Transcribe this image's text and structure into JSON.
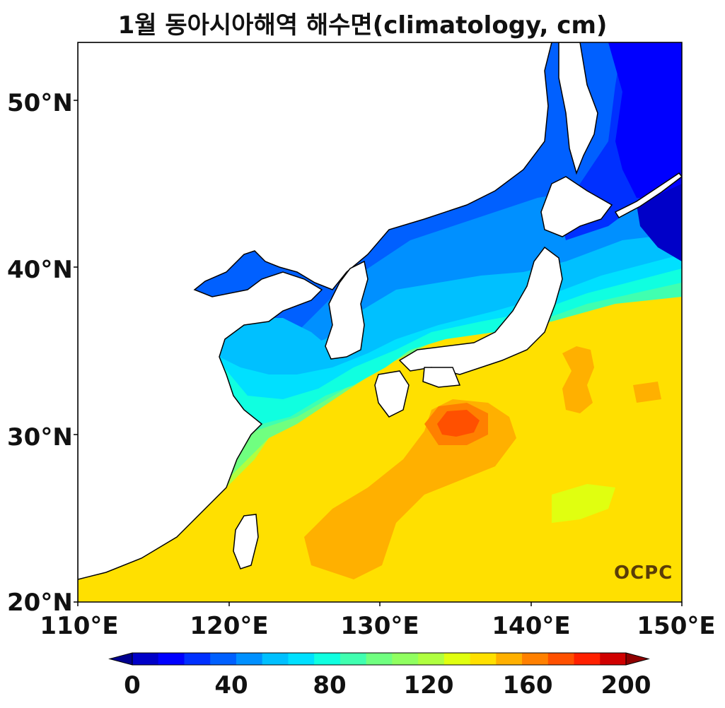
{
  "title": "1월 동아시아해역 해수면(climatology, cm)",
  "y_axis": {
    "ticks": [
      "50°N",
      "40°N",
      "30°N",
      "20°N"
    ],
    "values": [
      50,
      40,
      30,
      20
    ]
  },
  "x_axis": {
    "ticks": [
      "110°E",
      "120°E",
      "130°E",
      "140°E",
      "150°E"
    ],
    "values": [
      110,
      120,
      130,
      140,
      150
    ]
  },
  "map_extent": {
    "lon": [
      110,
      150
    ],
    "lat": [
      20,
      53.5
    ]
  },
  "colorbar": {
    "ticks": [
      "0",
      "40",
      "80",
      "120",
      "160",
      "200"
    ],
    "tick_values": [
      0,
      40,
      80,
      120,
      160,
      200
    ],
    "range": [
      0,
      200
    ],
    "step": 10,
    "extend": "both",
    "colors": [
      "#00008f",
      "#0000c8",
      "#0000ff",
      "#0030ff",
      "#0060ff",
      "#0090ff",
      "#00c0ff",
      "#00e0ff",
      "#10ffe0",
      "#40ffb0",
      "#70ff80",
      "#90ff60",
      "#b0ff40",
      "#e0ff10",
      "#ffe000",
      "#ffb000",
      "#ff8000",
      "#ff5000",
      "#ff2000",
      "#d00000",
      "#8f0000"
    ]
  },
  "logo": "OCPC"
}
